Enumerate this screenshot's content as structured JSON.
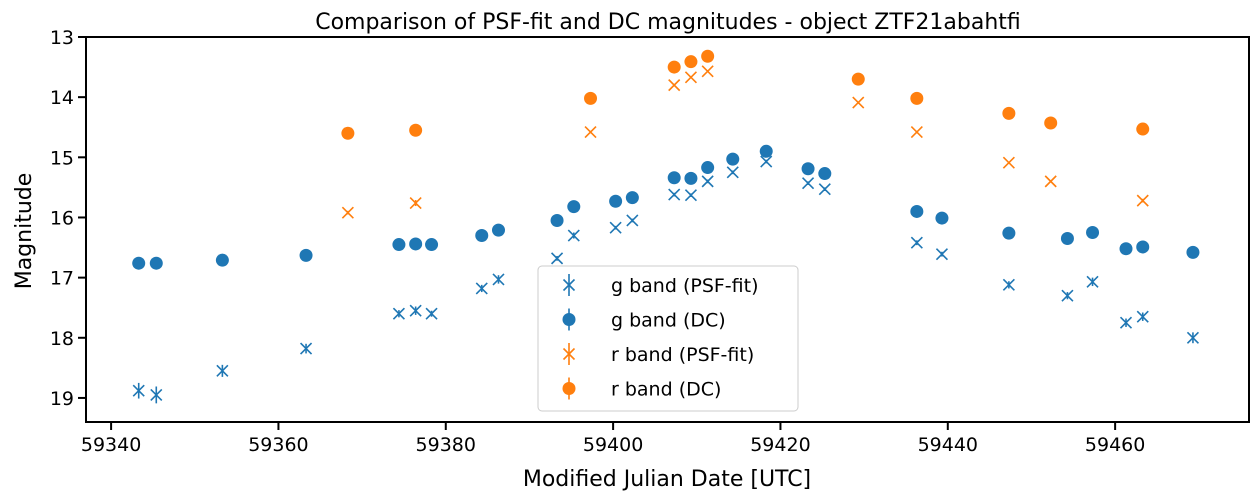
{
  "chart_data": {
    "type": "scatter",
    "title": "Comparison of PSF-fit and DC magnitudes - object ZTF21abahtfi",
    "xlabel": "Modified Julian Date [UTC]",
    "ylabel": "Magnitude",
    "xlim": [
      59337,
      59476
    ],
    "ylim": [
      19.4,
      13
    ],
    "y_inverted": true,
    "x_ticks": [
      59340,
      59360,
      59380,
      59400,
      59420,
      59440,
      59460
    ],
    "y_ticks": [
      13,
      14,
      15,
      16,
      17,
      18,
      19
    ],
    "grid": false,
    "legend_position": "bottom-center",
    "series": [
      {
        "name": "g band (PSF-fit)",
        "color": "#1f77b4",
        "marker": "x",
        "points": [
          {
            "x": 59343.3,
            "y": 18.88,
            "err": 0.13
          },
          {
            "x": 59345.4,
            "y": 18.95,
            "err": 0.14
          },
          {
            "x": 59353.3,
            "y": 18.55,
            "err": 0.1
          },
          {
            "x": 59363.3,
            "y": 18.18,
            "err": 0.08
          },
          {
            "x": 59374.4,
            "y": 17.6,
            "err": 0.06
          },
          {
            "x": 59376.4,
            "y": 17.55,
            "err": 0.07
          },
          {
            "x": 59378.3,
            "y": 17.6,
            "err": 0.05
          },
          {
            "x": 59384.3,
            "y": 17.18,
            "err": 0.06
          },
          {
            "x": 59386.3,
            "y": 17.03,
            "err": 0.07
          },
          {
            "x": 59393.3,
            "y": 16.68,
            "err": 0.04
          },
          {
            "x": 59395.3,
            "y": 16.3,
            "err": 0.05
          },
          {
            "x": 59400.3,
            "y": 16.17,
            "err": 0.03
          },
          {
            "x": 59402.3,
            "y": 16.05,
            "err": 0.03
          },
          {
            "x": 59407.3,
            "y": 15.62,
            "err": 0.03
          },
          {
            "x": 59409.3,
            "y": 15.63,
            "err": 0.03
          },
          {
            "x": 59411.3,
            "y": 15.4,
            "err": 0.03
          },
          {
            "x": 59414.3,
            "y": 15.25,
            "err": 0.03
          },
          {
            "x": 59418.3,
            "y": 15.07,
            "err": 0.03
          },
          {
            "x": 59423.3,
            "y": 15.43,
            "err": 0.03
          },
          {
            "x": 59425.3,
            "y": 15.53,
            "err": 0.03
          },
          {
            "x": 59436.3,
            "y": 16.42,
            "err": 0.04
          },
          {
            "x": 59439.3,
            "y": 16.61,
            "err": 0.04
          },
          {
            "x": 59447.3,
            "y": 17.12,
            "err": 0.06
          },
          {
            "x": 59454.3,
            "y": 17.3,
            "err": 0.06
          },
          {
            "x": 59457.3,
            "y": 17.07,
            "err": 0.07
          },
          {
            "x": 59461.3,
            "y": 17.75,
            "err": 0.07
          },
          {
            "x": 59463.3,
            "y": 17.65,
            "err": 0.07
          },
          {
            "x": 59469.3,
            "y": 18.0,
            "err": 0.09
          }
        ]
      },
      {
        "name": "g band (DC)",
        "color": "#1f77b4",
        "marker": "o",
        "points": [
          {
            "x": 59343.3,
            "y": 16.76
          },
          {
            "x": 59345.4,
            "y": 16.76
          },
          {
            "x": 59353.3,
            "y": 16.71
          },
          {
            "x": 59363.3,
            "y": 16.63
          },
          {
            "x": 59374.4,
            "y": 16.45
          },
          {
            "x": 59376.4,
            "y": 16.44
          },
          {
            "x": 59378.3,
            "y": 16.45
          },
          {
            "x": 59384.3,
            "y": 16.3
          },
          {
            "x": 59386.3,
            "y": 16.21
          },
          {
            "x": 59393.3,
            "y": 16.05
          },
          {
            "x": 59395.3,
            "y": 15.82
          },
          {
            "x": 59400.3,
            "y": 15.73
          },
          {
            "x": 59402.3,
            "y": 15.67
          },
          {
            "x": 59407.3,
            "y": 15.34
          },
          {
            "x": 59409.3,
            "y": 15.35
          },
          {
            "x": 59411.3,
            "y": 15.17
          },
          {
            "x": 59414.3,
            "y": 15.03
          },
          {
            "x": 59418.3,
            "y": 14.9
          },
          {
            "x": 59423.3,
            "y": 15.19
          },
          {
            "x": 59425.3,
            "y": 15.27
          },
          {
            "x": 59436.3,
            "y": 15.9
          },
          {
            "x": 59439.3,
            "y": 16.01
          },
          {
            "x": 59447.3,
            "y": 16.26
          },
          {
            "x": 59454.3,
            "y": 16.35
          },
          {
            "x": 59457.3,
            "y": 16.25
          },
          {
            "x": 59461.3,
            "y": 16.52
          },
          {
            "x": 59463.3,
            "y": 16.49
          },
          {
            "x": 59469.3,
            "y": 16.58
          }
        ]
      },
      {
        "name": "r band (PSF-fit)",
        "color": "#ff7f0e",
        "marker": "x",
        "points": [
          {
            "x": 59368.3,
            "y": 15.92,
            "err": 0.03
          },
          {
            "x": 59376.4,
            "y": 15.76,
            "err": 0.05
          },
          {
            "x": 59397.3,
            "y": 14.58,
            "err": 0.02
          },
          {
            "x": 59407.3,
            "y": 13.8,
            "err": 0.02
          },
          {
            "x": 59409.3,
            "y": 13.67,
            "err": 0.02
          },
          {
            "x": 59411.3,
            "y": 13.57,
            "err": 0.02
          },
          {
            "x": 59429.3,
            "y": 14.09,
            "err": 0.02
          },
          {
            "x": 59436.3,
            "y": 14.58,
            "err": 0.02
          },
          {
            "x": 59447.3,
            "y": 15.09,
            "err": 0.02
          },
          {
            "x": 59452.3,
            "y": 15.4,
            "err": 0.02
          },
          {
            "x": 59463.3,
            "y": 15.72,
            "err": 0.03
          }
        ]
      },
      {
        "name": "r band (DC)",
        "color": "#ff7f0e",
        "marker": "o",
        "points": [
          {
            "x": 59368.3,
            "y": 14.6
          },
          {
            "x": 59376.4,
            "y": 14.55
          },
          {
            "x": 59397.3,
            "y": 14.02
          },
          {
            "x": 59407.3,
            "y": 13.5
          },
          {
            "x": 59409.3,
            "y": 13.41
          },
          {
            "x": 59411.3,
            "y": 13.32
          },
          {
            "x": 59429.3,
            "y": 13.7
          },
          {
            "x": 59436.3,
            "y": 14.02
          },
          {
            "x": 59447.3,
            "y": 14.27
          },
          {
            "x": 59452.3,
            "y": 14.43
          },
          {
            "x": 59463.3,
            "y": 14.53
          }
        ]
      }
    ]
  }
}
